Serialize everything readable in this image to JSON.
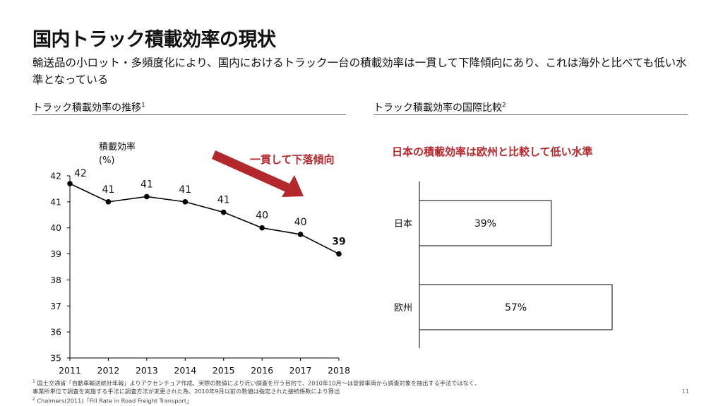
{
  "title": "国内トラック積載効率の現状",
  "subtitle": "輸送品の小ロット・多頻度化により、国内におけるトラック一台の積載効率は一貫して下降傾向にあり、これは海外と比べても低い水準となっている",
  "accent_color": "#b3282d",
  "left_section_title": "トラック積載効率の推移",
  "left_section_sup": "1",
  "right_section_title": "トラック積載効率の国際比較",
  "right_section_sup": "2",
  "footnotes": {
    "n1_sup": "1",
    "n1_line1": "国土交通省「自動車輸送統計年報」よりアクセンチュア作成、実際の数値により近い調査を行う目的で、2010年10月～は登録車両から調査対象を抽出する手法ではなく、",
    "n1_line2": "事業所単位で調査を実施する手法に調査方法が変更された為、2010年9月以前の数値は指定された接続係数により算出",
    "n2_sup": "2",
    "n2_text": "Chalmers(2011)「Fill Rate in Road Freight Transport」"
  },
  "page_number": "11",
  "chart_data": [
    {
      "type": "line",
      "title": "",
      "ylabel_line1": "積載効率",
      "ylabel_line2": "(%)",
      "x": [
        2011,
        2012,
        2013,
        2014,
        2015,
        2016,
        2017,
        2018
      ],
      "y": [
        41.7,
        41.0,
        41.2,
        41.0,
        40.6,
        40.0,
        39.75,
        39.0
      ],
      "point_labels": [
        "42",
        "41",
        "41",
        "41",
        "41",
        "40",
        "40",
        "39"
      ],
      "ylim": [
        35,
        42
      ],
      "yticks": [
        35,
        36,
        37,
        38,
        39,
        40,
        41,
        42
      ],
      "annotation": "一貫して下落傾向",
      "line_color": "#000000",
      "grid": false
    },
    {
      "type": "bar",
      "orientation": "horizontal",
      "headline": "日本の積載効率は欧州と比較して低い水準",
      "categories": [
        "日本",
        "欧州"
      ],
      "values": [
        39,
        57
      ],
      "value_labels": [
        "39%",
        "57%"
      ],
      "bar_fill": "#ffffff",
      "bar_stroke": "#000000"
    }
  ]
}
